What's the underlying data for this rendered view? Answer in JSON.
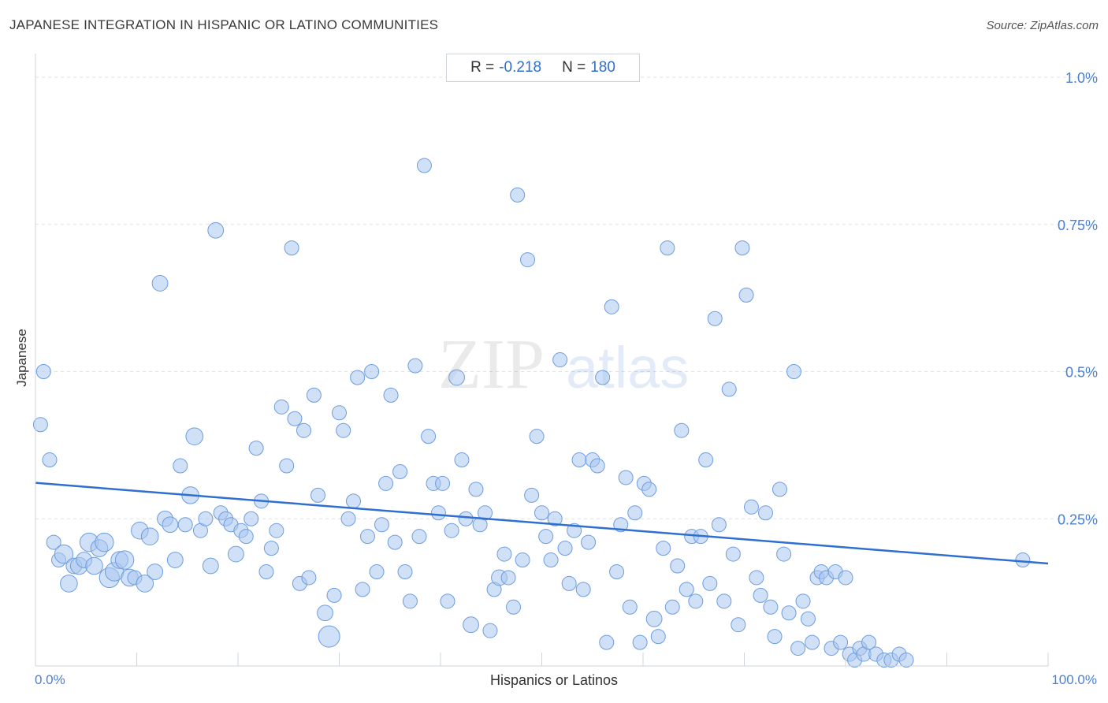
{
  "header": {
    "title": "JAPANESE INTEGRATION IN HISPANIC OR LATINO COMMUNITIES",
    "source": "Source: ZipAtlas.com"
  },
  "stats": {
    "r_label": "R =",
    "r_value": "-0.218",
    "n_label": "N =",
    "n_value": "180"
  },
  "watermark": {
    "zip": "ZIP",
    "atlas": "atlas"
  },
  "colors": {
    "point_fill": "#a9c6ef",
    "point_stroke": "#6d9de0",
    "trend": "#2f6fcf",
    "tick_text": "#4a80d4",
    "grid": "#dde2e8"
  },
  "chart_data": {
    "type": "scatter",
    "title": "JAPANESE INTEGRATION IN HISPANIC OR LATINO COMMUNITIES",
    "xlabel": "Hispanics or Latinos",
    "ylabel": "Japanese",
    "xlim": [
      0,
      100
    ],
    "ylim": [
      0,
      1.0
    ],
    "x_tick_labels": [
      "0.0%",
      "100.0%"
    ],
    "y_ticks": [
      0.25,
      0.5,
      0.75,
      1.0
    ],
    "y_tick_labels": [
      "0.25%",
      "0.5%",
      "0.75%",
      "1.0%"
    ],
    "grid": true,
    "trend_line": {
      "x": [
        0,
        100
      ],
      "y": [
        0.311,
        0.174
      ]
    },
    "points": [
      [
        0.5,
        0.41,
        1
      ],
      [
        0.8,
        0.5,
        1
      ],
      [
        1.4,
        0.35,
        1
      ],
      [
        1.8,
        0.21,
        1
      ],
      [
        2.3,
        0.18,
        1
      ],
      [
        2.8,
        0.19,
        1.3
      ],
      [
        3.3,
        0.14,
        1.2
      ],
      [
        3.8,
        0.17,
        1.1
      ],
      [
        4.3,
        0.17,
        1.2
      ],
      [
        4.8,
        0.18,
        1.1
      ],
      [
        5.3,
        0.21,
        1.3
      ],
      [
        5.8,
        0.17,
        1.2
      ],
      [
        6.3,
        0.2,
        1.2
      ],
      [
        6.8,
        0.21,
        1.3
      ],
      [
        7.3,
        0.15,
        1.4
      ],
      [
        7.8,
        0.16,
        1.3
      ],
      [
        8.3,
        0.18,
        1.2
      ],
      [
        8.8,
        0.18,
        1.3
      ],
      [
        9.3,
        0.15,
        1.2
      ],
      [
        9.8,
        0.15,
        1
      ],
      [
        10.3,
        0.23,
        1.2
      ],
      [
        10.8,
        0.14,
        1.2
      ],
      [
        11.3,
        0.22,
        1.2
      ],
      [
        11.8,
        0.16,
        1.1
      ],
      [
        12.3,
        0.65,
        1.1
      ],
      [
        12.8,
        0.25,
        1.1
      ],
      [
        13.3,
        0.24,
        1.1
      ],
      [
        13.8,
        0.18,
        1.1
      ],
      [
        14.3,
        0.34,
        1
      ],
      [
        14.8,
        0.24,
        1
      ],
      [
        15.3,
        0.29,
        1.2
      ],
      [
        15.7,
        0.39,
        1.2
      ],
      [
        16.3,
        0.23,
        1
      ],
      [
        16.8,
        0.25,
        1
      ],
      [
        17.3,
        0.17,
        1.1
      ],
      [
        17.8,
        0.74,
        1.1
      ],
      [
        18.3,
        0.26,
        1
      ],
      [
        18.8,
        0.25,
        1
      ],
      [
        19.3,
        0.24,
        1
      ],
      [
        19.8,
        0.19,
        1.1
      ],
      [
        20.3,
        0.23,
        1
      ],
      [
        20.8,
        0.22,
        1
      ],
      [
        21.3,
        0.25,
        1
      ],
      [
        21.8,
        0.37,
        1
      ],
      [
        22.3,
        0.28,
        1
      ],
      [
        22.8,
        0.16,
        1
      ],
      [
        23.3,
        0.2,
        1
      ],
      [
        23.8,
        0.23,
        1
      ],
      [
        24.3,
        0.44,
        1
      ],
      [
        24.8,
        0.34,
        1
      ],
      [
        25.3,
        0.71,
        1
      ],
      [
        25.6,
        0.42,
        1
      ],
      [
        26.1,
        0.14,
        1
      ],
      [
        26.5,
        0.4,
        1
      ],
      [
        27.0,
        0.15,
        1
      ],
      [
        27.5,
        0.46,
        1
      ],
      [
        27.9,
        0.29,
        1
      ],
      [
        28.6,
        0.09,
        1.1
      ],
      [
        29.0,
        0.05,
        1.5
      ],
      [
        29.5,
        0.12,
        1
      ],
      [
        30.0,
        0.43,
        1
      ],
      [
        30.4,
        0.4,
        1
      ],
      [
        30.9,
        0.25,
        1
      ],
      [
        31.4,
        0.28,
        1
      ],
      [
        31.8,
        0.49,
        1
      ],
      [
        32.3,
        0.13,
        1
      ],
      [
        32.8,
        0.22,
        1
      ],
      [
        33.2,
        0.5,
        1
      ],
      [
        33.7,
        0.16,
        1
      ],
      [
        34.2,
        0.24,
        1
      ],
      [
        34.6,
        0.31,
        1
      ],
      [
        35.1,
        0.46,
        1
      ],
      [
        35.5,
        0.21,
        1
      ],
      [
        36.0,
        0.33,
        1
      ],
      [
        36.5,
        0.16,
        1
      ],
      [
        37.0,
        0.11,
        1
      ],
      [
        37.5,
        0.51,
        1
      ],
      [
        37.9,
        0.22,
        1
      ],
      [
        38.4,
        0.85,
        1
      ],
      [
        38.8,
        0.39,
        1
      ],
      [
        39.3,
        0.31,
        1
      ],
      [
        39.8,
        0.26,
        1
      ],
      [
        40.2,
        0.31,
        1
      ],
      [
        40.7,
        0.11,
        1
      ],
      [
        41.1,
        0.23,
        1
      ],
      [
        41.6,
        0.49,
        1.1
      ],
      [
        42.1,
        0.35,
        1
      ],
      [
        42.5,
        0.25,
        1
      ],
      [
        43.0,
        0.07,
        1.1
      ],
      [
        43.5,
        0.3,
        1
      ],
      [
        43.9,
        0.24,
        1
      ],
      [
        44.4,
        0.26,
        1
      ],
      [
        44.9,
        0.06,
        1
      ],
      [
        45.3,
        0.13,
        1
      ],
      [
        45.8,
        0.15,
        1.1
      ],
      [
        46.3,
        0.19,
        1
      ],
      [
        46.7,
        0.15,
        1
      ],
      [
        47.2,
        0.1,
        1
      ],
      [
        47.6,
        0.8,
        1
      ],
      [
        48.1,
        0.18,
        1
      ],
      [
        48.6,
        0.69,
        1
      ],
      [
        49.0,
        0.29,
        1
      ],
      [
        49.5,
        0.39,
        1
      ],
      [
        50.0,
        0.26,
        1
      ],
      [
        50.4,
        0.22,
        1
      ],
      [
        50.9,
        0.18,
        1
      ],
      [
        51.3,
        0.25,
        1
      ],
      [
        51.8,
        0.52,
        1
      ],
      [
        52.3,
        0.2,
        1
      ],
      [
        52.7,
        0.14,
        1
      ],
      [
        53.2,
        0.23,
        1
      ],
      [
        53.7,
        0.35,
        1
      ],
      [
        54.1,
        0.13,
        1
      ],
      [
        54.6,
        0.21,
        1
      ],
      [
        55.0,
        0.35,
        1
      ],
      [
        55.5,
        0.34,
        1
      ],
      [
        56.0,
        0.49,
        1
      ],
      [
        56.4,
        0.04,
        1
      ],
      [
        56.9,
        0.61,
        1
      ],
      [
        57.4,
        0.16,
        1
      ],
      [
        57.8,
        0.24,
        1
      ],
      [
        58.3,
        0.32,
        1
      ],
      [
        58.7,
        0.1,
        1
      ],
      [
        59.2,
        0.26,
        1
      ],
      [
        59.7,
        0.04,
        1
      ],
      [
        60.1,
        0.31,
        1
      ],
      [
        60.6,
        0.3,
        1
      ],
      [
        61.1,
        0.08,
        1.1
      ],
      [
        61.5,
        0.05,
        1
      ],
      [
        62.0,
        0.2,
        1
      ],
      [
        62.4,
        0.71,
        1
      ],
      [
        62.9,
        0.1,
        1
      ],
      [
        63.4,
        0.17,
        1
      ],
      [
        63.8,
        0.4,
        1
      ],
      [
        64.3,
        0.13,
        1
      ],
      [
        64.8,
        0.22,
        1
      ],
      [
        65.2,
        0.11,
        1
      ],
      [
        65.7,
        0.22,
        1
      ],
      [
        66.2,
        0.35,
        1
      ],
      [
        66.6,
        0.14,
        1
      ],
      [
        67.1,
        0.59,
        1
      ],
      [
        67.5,
        0.24,
        1
      ],
      [
        68.0,
        0.11,
        1
      ],
      [
        68.5,
        0.47,
        1
      ],
      [
        68.9,
        0.19,
        1
      ],
      [
        69.4,
        0.07,
        1
      ],
      [
        69.8,
        0.71,
        1
      ],
      [
        70.2,
        0.63,
        1
      ],
      [
        70.7,
        0.27,
        1
      ],
      [
        71.2,
        0.15,
        1
      ],
      [
        71.6,
        0.12,
        1
      ],
      [
        72.1,
        0.26,
        1
      ],
      [
        72.6,
        0.1,
        1
      ],
      [
        73.0,
        0.05,
        1
      ],
      [
        73.5,
        0.3,
        1
      ],
      [
        73.9,
        0.19,
        1
      ],
      [
        74.4,
        0.09,
        1
      ],
      [
        74.9,
        0.5,
        1
      ],
      [
        75.3,
        0.03,
        1
      ],
      [
        75.8,
        0.11,
        1
      ],
      [
        76.3,
        0.08,
        1
      ],
      [
        76.7,
        0.04,
        1
      ],
      [
        77.2,
        0.15,
        1
      ],
      [
        77.6,
        0.16,
        1
      ],
      [
        78.1,
        0.15,
        1
      ],
      [
        78.6,
        0.03,
        1
      ],
      [
        79.0,
        0.16,
        1
      ],
      [
        79.5,
        0.04,
        1
      ],
      [
        80.0,
        0.15,
        1
      ],
      [
        80.4,
        0.02,
        1
      ],
      [
        80.9,
        0.01,
        1
      ],
      [
        81.4,
        0.03,
        1
      ],
      [
        81.8,
        0.02,
        1
      ],
      [
        82.3,
        0.04,
        1
      ],
      [
        83.0,
        0.02,
        1
      ],
      [
        83.8,
        0.01,
        1
      ],
      [
        84.5,
        0.01,
        1
      ],
      [
        85.3,
        0.02,
        1
      ],
      [
        86.0,
        0.01,
        1
      ],
      [
        97.5,
        0.18,
        1
      ]
    ]
  }
}
